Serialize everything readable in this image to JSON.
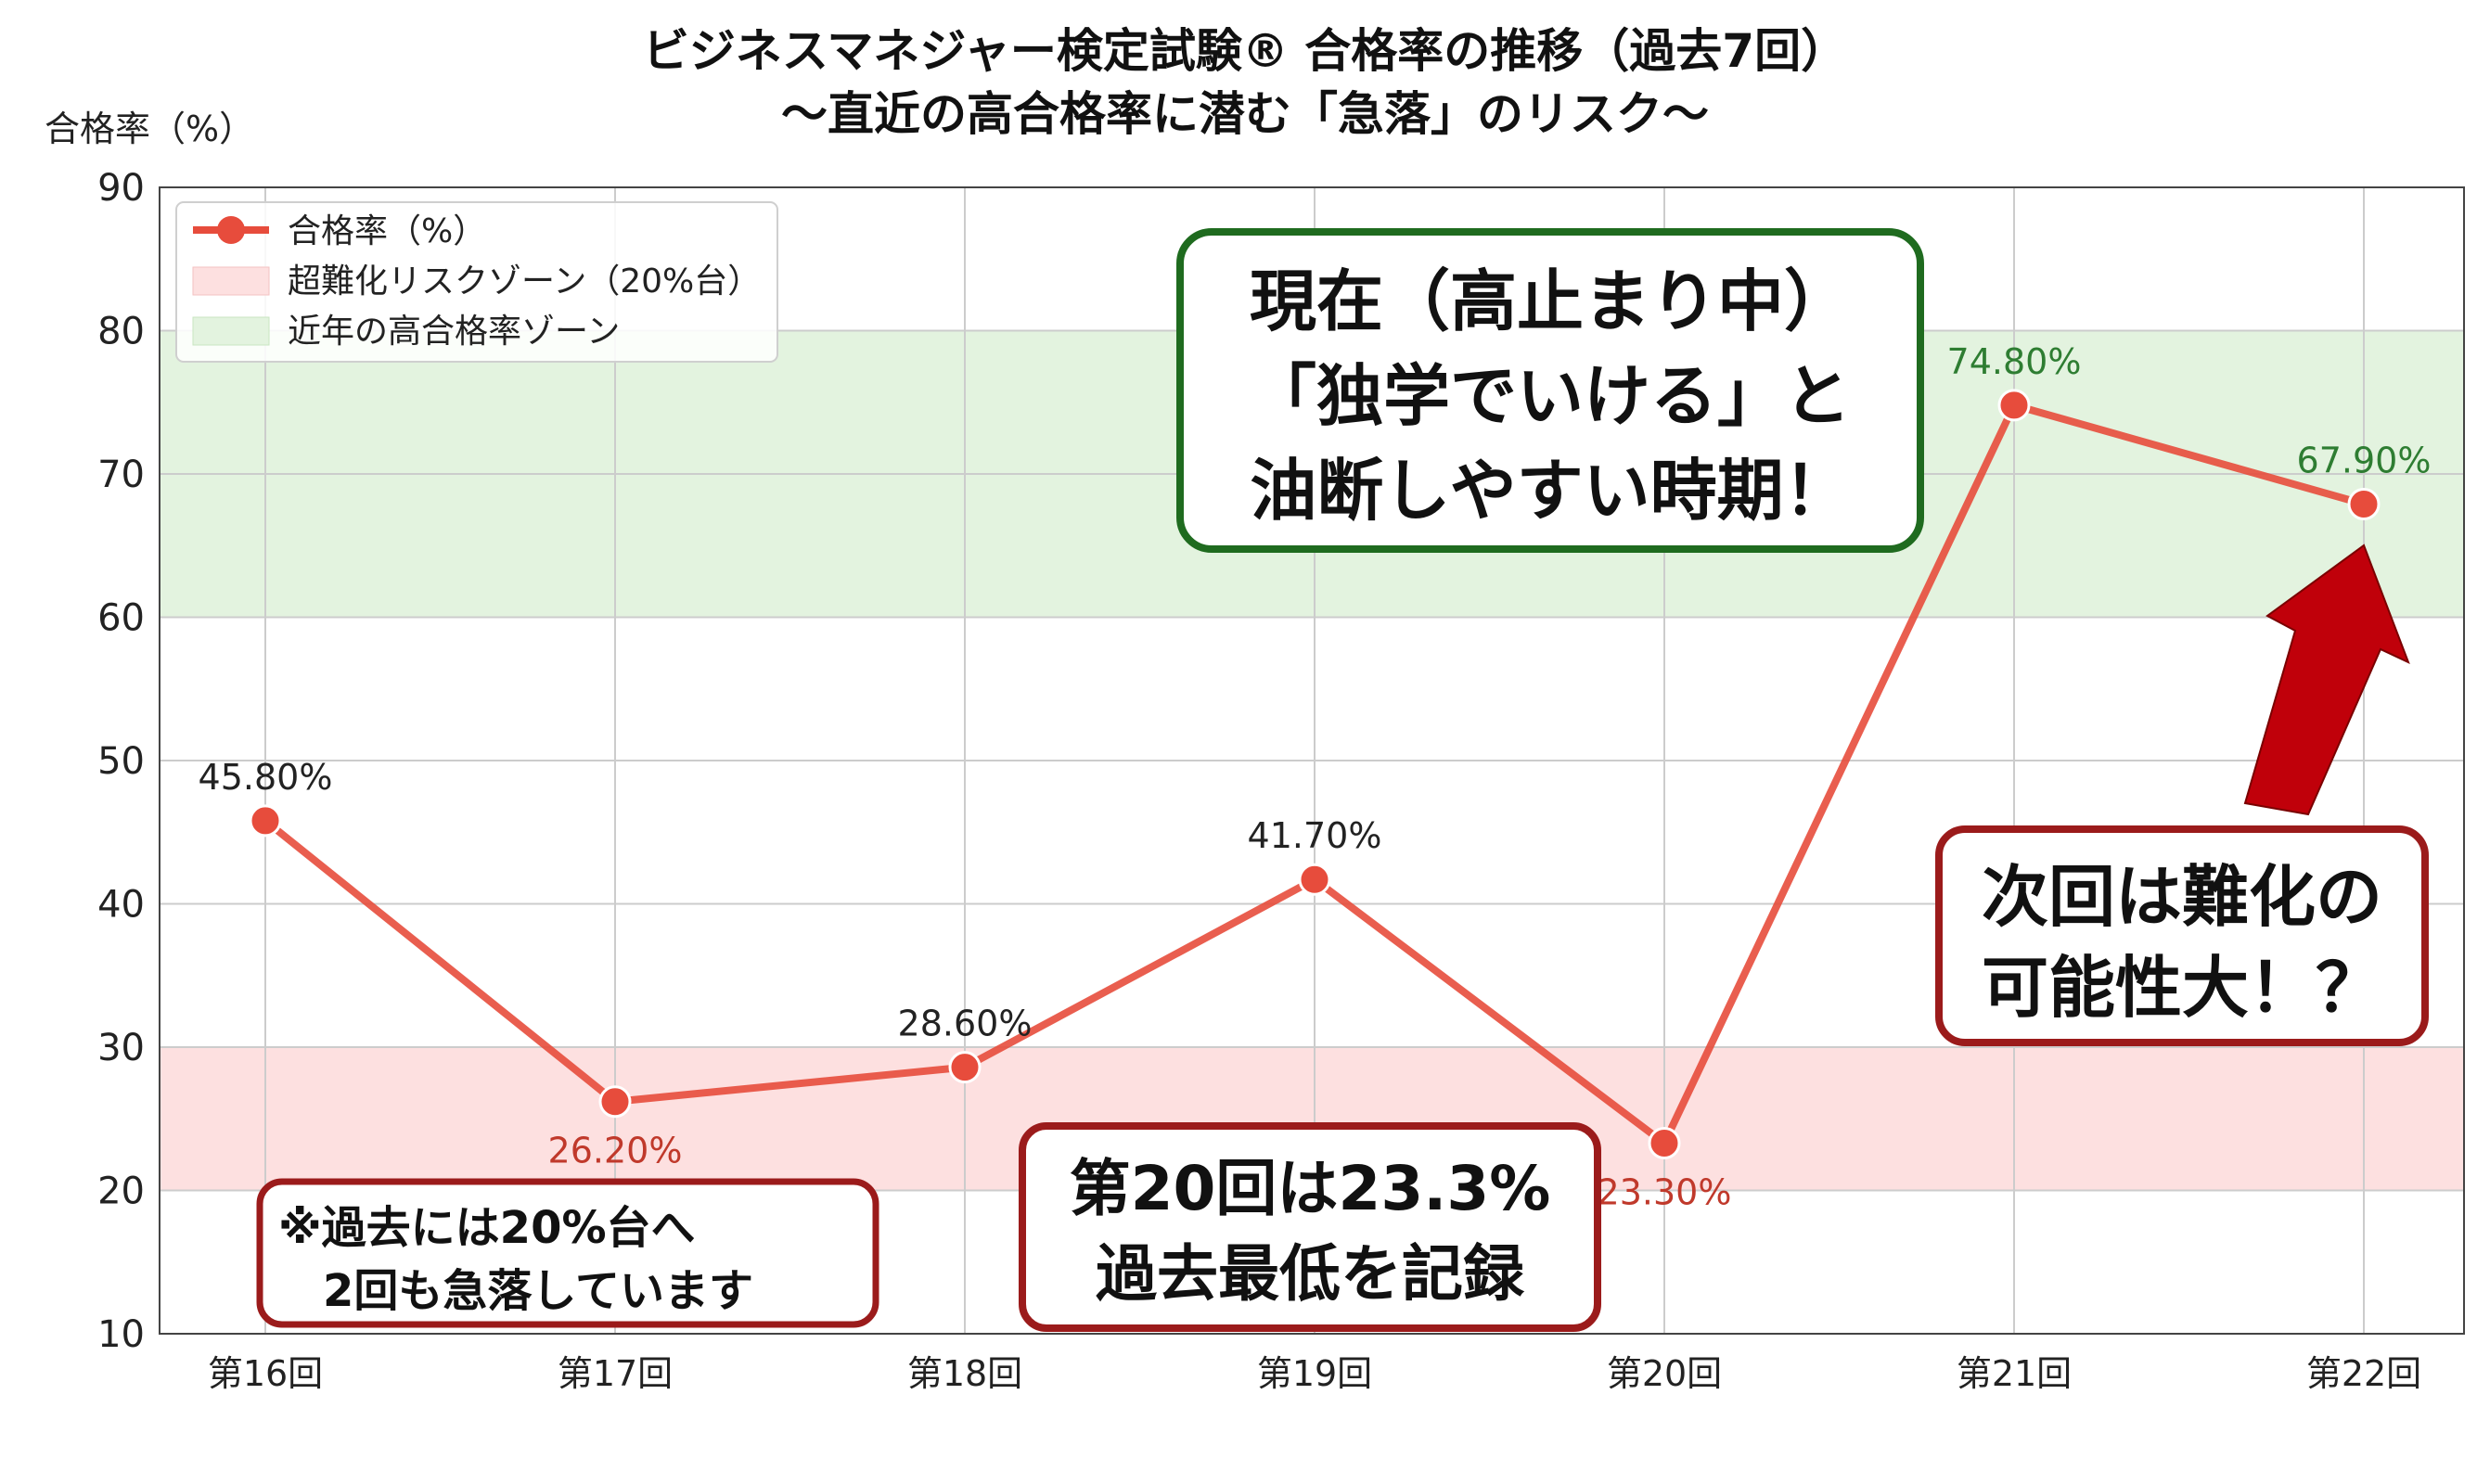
{
  "chart_data": {
    "type": "line",
    "title": "ビジネスマネジャー検定試験® 合格率の推移（過去7回）",
    "subtitle": "〜直近の高合格率に潜む「急落」のリスク〜",
    "ylabel": "合格率（%）",
    "xlabel": "",
    "ylim": [
      10,
      90
    ],
    "yticks": [
      10,
      20,
      30,
      40,
      50,
      60,
      70,
      80,
      90
    ],
    "grid": true,
    "legend_position": "top-left",
    "categories": [
      "第16回",
      "第17回",
      "第18回",
      "第19回",
      "第20回",
      "第21回",
      "第22回"
    ],
    "series": [
      {
        "name": "合格率（%）",
        "values": [
          45.8,
          26.2,
          28.6,
          41.7,
          23.3,
          74.8,
          67.9
        ],
        "labels": [
          "45.80%",
          "26.20%",
          "28.60%",
          "41.70%",
          "23.30%",
          "74.80%",
          "67.90%"
        ],
        "label_positions": [
          "above",
          "below",
          "above",
          "above",
          "below",
          "above",
          "above"
        ],
        "label_colors": [
          "#222222",
          "#c0392b",
          "#222222",
          "#222222",
          "#c0392b",
          "#2e7d32",
          "#2e7d32"
        ],
        "color": "#e74c3c"
      }
    ],
    "bands": [
      {
        "name": "超難化リスクゾーン（20%台）",
        "from": 20,
        "to": 30,
        "color": "#fde0e0"
      },
      {
        "name": "近年の高合格率ゾーン",
        "from": 60,
        "to": 80,
        "color": "#e3f3df"
      }
    ],
    "annotations": [
      {
        "id": "note-past",
        "lines": [
          "※過去には20%台へ",
          "　2回も急落しています"
        ],
        "border_color": "#9b1b1b"
      },
      {
        "id": "note-20th",
        "lines": [
          "第20回は23.3%",
          "過去最低を記録"
        ],
        "border_color": "#9b1b1b"
      },
      {
        "id": "note-now",
        "lines": [
          "現在（高止まり中）",
          "「独学でいける」と",
          "油断しやすい時期！"
        ],
        "border_color": "#1f6b1f"
      },
      {
        "id": "note-next",
        "lines": [
          "次回は難化の",
          "可能性大！？"
        ],
        "border_color": "#9b1b1b"
      }
    ],
    "arrow_color": "#c0000a"
  }
}
